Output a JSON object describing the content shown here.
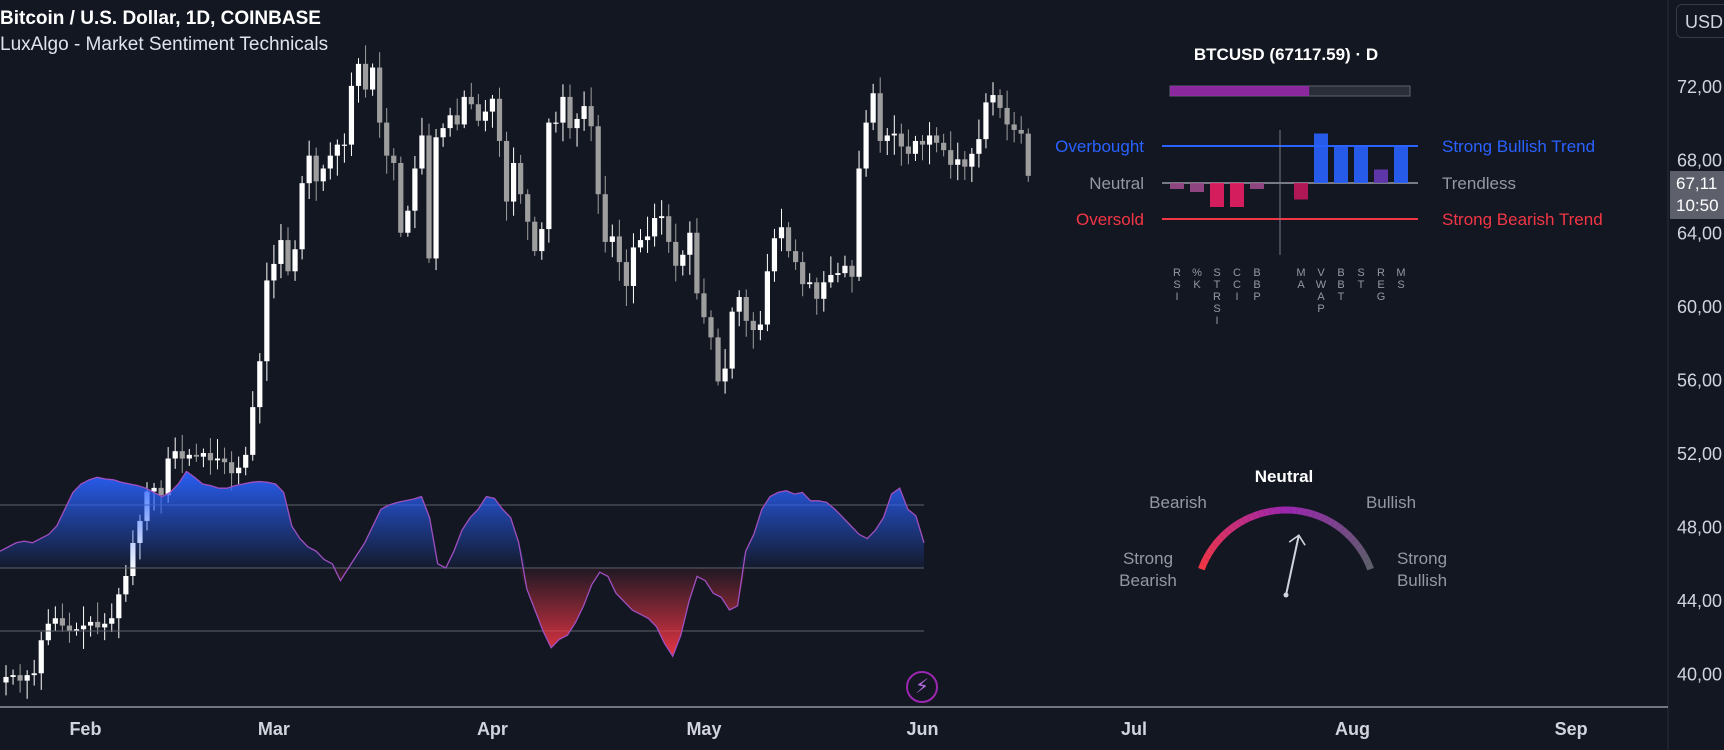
{
  "header": {
    "symbol_title": "Bitcoin / U.S. Dollar, 1D, COINBASE",
    "indicator_name": "LuxAlgo - Market Sentiment Technicals"
  },
  "price_axis": {
    "currency_button": "USD",
    "last_price_label": "67,11",
    "countdown_label": "10:50"
  },
  "colors": {
    "background": "#131722",
    "candle_up": "#ffffff",
    "candle_down": "#9e9e9e",
    "bullish_blue": "#2962ff",
    "bearish_red": "#f23645",
    "neutral_gray": "#787b86",
    "accent_purple": "#9c27b0"
  },
  "panel": {
    "title": "BTCUSD (67117.59) · D",
    "progress_fraction": 0.58,
    "left_labels": {
      "overbought": "Overbought",
      "neutral": "Neutral",
      "oversold": "Oversold"
    },
    "right_labels": {
      "bullish": "Strong Bullish Trend",
      "neutral": "Trendless",
      "bearish": "Strong Bearish Trend"
    },
    "oscillators": [
      {
        "label": "RSI",
        "value": -0.2
      },
      {
        "label": "%K",
        "value": -0.3
      },
      {
        "label": "STRSI",
        "value": -0.8
      },
      {
        "label": "CCI",
        "value": -0.8
      },
      {
        "label": "BBP",
        "value": -0.2
      }
    ],
    "trend": [
      {
        "label": "MA",
        "value": -0.55
      },
      {
        "label": "VWAP",
        "value": 1.65
      },
      {
        "label": "BBT",
        "value": 1.2
      },
      {
        "label": "ST",
        "value": 1.2
      },
      {
        "label": "REG",
        "value": 0.45
      },
      {
        "label": "MS",
        "value": 1.2
      }
    ]
  },
  "gauge": {
    "title": "Neutral",
    "bearish": "Bearish",
    "bullish": "Bullish",
    "strong_bearish": [
      "Strong",
      "Bearish"
    ],
    "strong_bullish": [
      "Strong",
      "Bullish"
    ],
    "needle_value": 0.58
  },
  "chart_data": {
    "type": "candlestick",
    "title": "Bitcoin / U.S. Dollar, 1D, COINBASE",
    "y_ticks": [
      "72,00",
      "68,00",
      "64,00",
      "60,00",
      "56,00",
      "52,00",
      "48,00",
      "44,00",
      "40,00"
    ],
    "y_tick_values": [
      72000,
      68000,
      64000,
      60000,
      56000,
      52000,
      48000,
      44000,
      40000
    ],
    "ylim": [
      38000,
      74500
    ],
    "x_ticks": [
      "Feb",
      "Mar",
      "Apr",
      "May",
      "Jun",
      "Jul",
      "Aug",
      "Sep"
    ],
    "x_tick_dates": [
      "2024-02-01",
      "2024-03-01",
      "2024-04-01",
      "2024-05-01",
      "2024-06-01",
      "2024-07-01",
      "2024-08-01",
      "2024-09-01"
    ],
    "start_date": "2024-01-23",
    "close_series": [
      39800,
      39900,
      39600,
      39900,
      40000,
      41800,
      42700,
      43000,
      42600,
      42300,
      42400,
      42600,
      42800,
      42500,
      42700,
      43000,
      44300,
      45300,
      47100,
      48300,
      49900,
      50100,
      49700,
      51700,
      52100,
      51700,
      51900,
      51800,
      52000,
      51600,
      51700,
      51500,
      50900,
      51200,
      51900,
      54500,
      57000,
      61400,
      62300,
      63600,
      61900,
      63100,
      66700,
      68200,
      66800,
      67500,
      68200,
      68800,
      68800,
      72000,
      73200,
      71800,
      73000,
      70000,
      68200,
      67800,
      64000,
      65200,
      67500,
      69300,
      62600,
      69200,
      69700,
      70400,
      69900,
      71400,
      71000,
      70100,
      70600,
      71300,
      69000,
      65700,
      67800,
      66100,
      64600,
      63000,
      64200,
      70000,
      70000,
      71400,
      69700,
      70200,
      70900,
      69800,
      66100,
      63500,
      63800,
      62400,
      61100,
      63200,
      63600,
      63800,
      64800,
      64900,
      63500,
      62200,
      62800,
      64000,
      60700,
      59400,
      58300,
      55900,
      56600,
      59700,
      60500,
      59200,
      58700,
      59000,
      61900,
      63700,
      64300,
      63000,
      62400,
      61200,
      61300,
      60400,
      61300,
      61700,
      61800,
      62200,
      61600,
      67500,
      70000,
      71600,
      69000,
      69300,
      69400,
      68700,
      68300,
      69000,
      68800,
      69300,
      68900,
      68500,
      67700,
      68000,
      67600,
      68300,
      69100,
      71100,
      71500,
      70800,
      69900,
      69600,
      69400,
      67100
    ]
  },
  "oscillator_pane": {
    "values": [
      0.2,
      0.25,
      0.3,
      0.32,
      0.3,
      0.35,
      0.4,
      0.5,
      0.7,
      0.9,
      1.0,
      1.05,
      1.08,
      1.06,
      1.05,
      1.02,
      1.0,
      0.98,
      0.95,
      0.9,
      0.85,
      0.9,
      1.0,
      1.15,
      1.08,
      1.0,
      0.98,
      0.95,
      0.95,
      0.98,
      1.0,
      1.02,
      1.03,
      1.02,
      1.0,
      0.9,
      0.5,
      0.35,
      0.25,
      0.2,
      0.1,
      0.05,
      -0.15,
      0.0,
      0.15,
      0.3,
      0.5,
      0.7,
      0.75,
      0.78,
      0.8,
      0.82,
      0.85,
      0.6,
      0.05,
      0.0,
      0.2,
      0.45,
      0.6,
      0.7,
      0.85,
      0.83,
      0.7,
      0.6,
      0.3,
      -0.25,
      -0.5,
      -0.75,
      -0.95,
      -0.85,
      -0.8,
      -0.65,
      -0.45,
      -0.2,
      -0.05,
      -0.1,
      -0.3,
      -0.4,
      -0.5,
      -0.55,
      -0.6,
      -0.7,
      -0.9,
      -1.05,
      -0.8,
      -0.4,
      -0.1,
      -0.15,
      -0.3,
      -0.35,
      -0.5,
      -0.45,
      0.2,
      0.4,
      0.7,
      0.85,
      0.9,
      0.92,
      0.88,
      0.9,
      0.8,
      0.8,
      0.78,
      0.7,
      0.6,
      0.5,
      0.4,
      0.35,
      0.45,
      0.6,
      0.88,
      0.95,
      0.7,
      0.62,
      0.3
    ],
    "upper_level": 0.75,
    "mid_level": 0.0,
    "lower_level": -0.75
  }
}
